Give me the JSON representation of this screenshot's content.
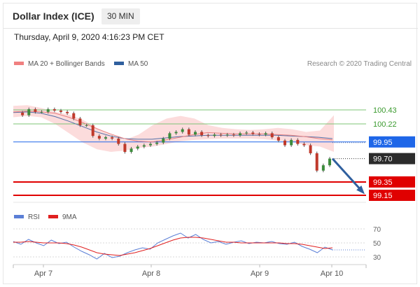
{
  "header": {
    "title": "Dollar Index (ICE)",
    "timeframe": "30 MIN",
    "timestamp": "Thursday, April 9, 2020 4:16:23 PM CET"
  },
  "legend": {
    "items": [
      {
        "label": "MA 20 + Bollinger Bands",
        "color": "#f08080"
      },
      {
        "label": "MA 50",
        "color": "#2f5f9e"
      }
    ],
    "credit": "Research © 2020 Trading Central"
  },
  "rsi_legend": {
    "items": [
      {
        "label": "RSI",
        "color": "#5b7fd6"
      },
      {
        "label": "9MA",
        "color": "#e02020"
      }
    ]
  },
  "chart_data": [
    {
      "type": "line",
      "title": "Dollar Index (ICE)",
      "x_labels": [
        "Apr 7",
        "Apr 8",
        "Apr 9",
        "Apr 10"
      ],
      "ylim": [
        99.1,
        100.6
      ],
      "levels": [
        {
          "value": 100.43,
          "label": "100.43",
          "kind": "resistance",
          "color": "#7cc576"
        },
        {
          "value": 100.22,
          "label": "100.22",
          "kind": "resistance",
          "color": "#7cc576"
        },
        {
          "value": 99.95,
          "label": "99.95",
          "kind": "pivot",
          "color": "#1e66e8"
        },
        {
          "value": 99.35,
          "label": "99.35",
          "kind": "support",
          "color": "#e00000"
        },
        {
          "value": 99.15,
          "label": "99.15",
          "kind": "support",
          "color": "#e00000"
        }
      ],
      "last_price": {
        "value": 99.7,
        "label": "99.70"
      },
      "forecast_arrow": {
        "from": 99.7,
        "to": 99.15
      },
      "price_path": [
        100.39,
        100.35,
        100.44,
        100.4,
        100.4,
        100.44,
        100.42,
        100.4,
        100.38,
        100.3,
        100.2,
        100.2,
        100.04,
        100.0,
        100.02,
        100.0,
        99.92,
        99.8,
        99.85,
        99.88,
        99.9,
        99.92,
        99.94,
        100.0,
        100.08,
        100.1,
        100.14,
        100.06,
        100.1,
        100.05,
        100.04,
        100.06,
        100.05,
        100.06,
        100.05,
        100.08,
        100.09,
        100.07,
        100.06,
        100.08,
        100.02,
        99.97,
        99.9,
        99.98,
        99.92,
        99.9,
        99.78,
        99.52,
        99.6,
        99.7
      ],
      "ma20_path": [
        100.4,
        100.41,
        100.4,
        100.38,
        100.32,
        100.24,
        100.15,
        100.07,
        100.0,
        99.96,
        99.95,
        99.98,
        100.02,
        100.06,
        100.09,
        100.08,
        100.07,
        100.07,
        100.07,
        100.06,
        100.05,
        100.03,
        100.0,
        99.98
      ],
      "ma50_path": [
        100.39,
        100.4,
        100.38,
        100.33,
        100.26,
        100.18,
        100.1,
        100.04,
        100.0,
        99.99,
        99.99,
        100.01,
        100.03,
        100.04,
        100.05,
        100.05,
        100.05,
        100.05,
        100.05,
        100.05,
        100.04,
        100.03,
        100.02,
        100.0
      ],
      "band_upper": [
        100.49,
        100.5,
        100.46,
        100.4,
        100.36,
        100.28,
        100.16,
        100.06,
        99.98,
        100.06,
        100.2,
        100.3,
        100.34,
        100.3,
        100.2,
        100.16,
        100.14,
        100.13,
        100.14,
        100.16,
        100.14,
        100.1,
        100.12,
        100.35
      ],
      "band_lower": [
        100.32,
        100.34,
        100.32,
        100.22,
        100.08,
        99.94,
        99.84,
        99.8,
        99.82,
        99.86,
        99.88,
        99.92,
        99.96,
        99.98,
        99.99,
        100.0,
        100.0,
        100.0,
        99.99,
        99.97,
        99.95,
        99.9,
        99.88,
        99.8
      ]
    },
    {
      "type": "line",
      "title": "RSI",
      "ylim": [
        20,
        80
      ],
      "y_ticks": [
        70,
        50,
        30
      ],
      "series": [
        {
          "name": "RSI",
          "color": "#5b7fd6",
          "values": [
            52,
            48,
            55,
            50,
            46,
            54,
            49,
            51,
            44,
            38,
            33,
            27,
            35,
            29,
            31,
            36,
            40,
            43,
            41,
            50,
            55,
            60,
            64,
            57,
            62,
            55,
            50,
            52,
            48,
            51,
            53,
            49,
            51,
            50,
            52,
            49,
            48,
            51,
            45,
            41,
            36,
            44,
            40
          ]
        },
        {
          "name": "9MA",
          "color": "#e02020",
          "values": [
            51,
            51,
            52,
            51,
            50,
            50,
            50,
            49,
            47,
            44,
            40,
            36,
            34,
            33,
            32,
            34,
            36,
            39,
            42,
            46,
            50,
            54,
            57,
            58,
            58,
            57,
            55,
            53,
            51,
            51,
            50,
            50,
            50,
            50,
            50,
            50,
            49,
            49,
            48,
            46,
            44,
            42,
            43
          ]
        }
      ]
    }
  ]
}
